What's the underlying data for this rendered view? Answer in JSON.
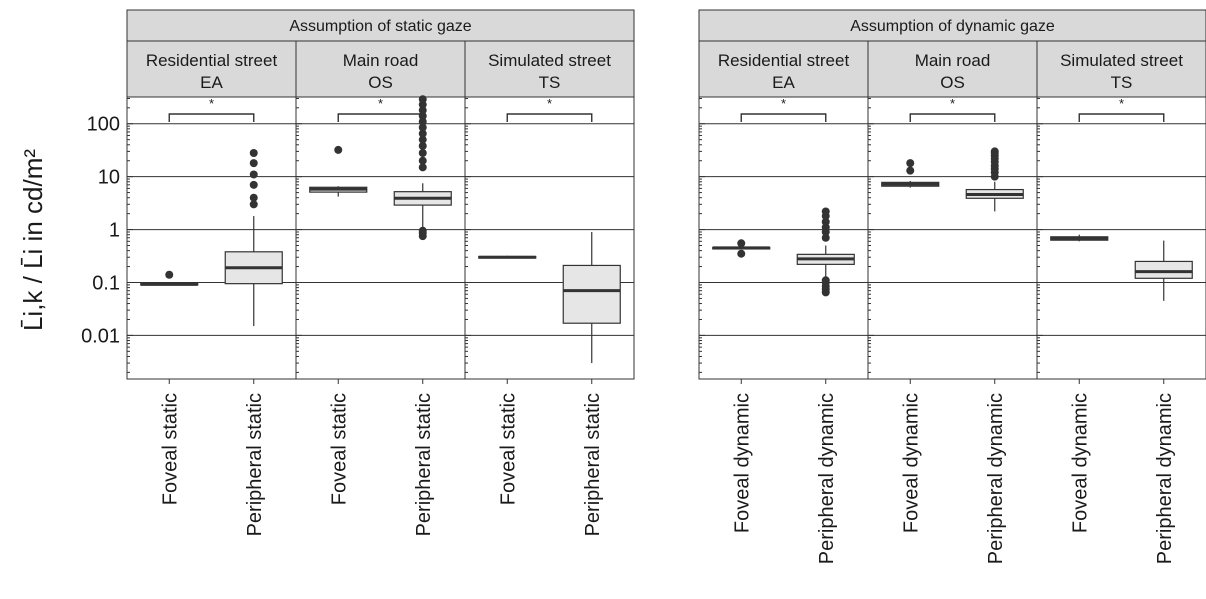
{
  "chart_data": {
    "type": "boxplot",
    "ylabel": "L̄i,k / L̄i in cd/m²",
    "yscale": "log",
    "ylim": [
      0.0015,
      320
    ],
    "y_ticks": [
      {
        "value": 100,
        "label": "100"
      },
      {
        "value": 10,
        "label": "10"
      },
      {
        "value": 1,
        "label": "1"
      },
      {
        "value": 0.1,
        "label": "0.1"
      },
      {
        "value": 0.01,
        "label": "0.01"
      }
    ],
    "grid": true,
    "groups": [
      {
        "title": "Assumption of static gaze",
        "panels": [
          {
            "title_line1": "Residential street",
            "title_line2": "EA",
            "significance": "*",
            "boxes": [
              {
                "category": "Foveal static",
                "whisker_low": 0.09,
                "q1": 0.09,
                "median": 0.092,
                "q3": 0.095,
                "whisker_high": 0.1,
                "outliers": [
                  0.14
                ]
              },
              {
                "category": "Peripheral static",
                "whisker_low": 0.015,
                "q1": 0.095,
                "median": 0.19,
                "q3": 0.38,
                "whisker_high": 1.8,
                "outliers": [
                  3,
                  4,
                  7,
                  11,
                  18,
                  28
                ]
              }
            ]
          },
          {
            "title_line1": "Main road",
            "title_line2": "OS",
            "significance": "*",
            "boxes": [
              {
                "category": "Foveal static",
                "whisker_low": 4.2,
                "q1": 5.1,
                "median": 5.8,
                "q3": 6.3,
                "whisker_high": 6.6,
                "outliers": [
                  32
                ]
              },
              {
                "category": "Peripheral static",
                "whisker_low": 1.1,
                "q1": 2.9,
                "median": 3.9,
                "q3": 5.2,
                "whisker_high": 7.5,
                "outliers": [
                  0.75,
                  0.85,
                  0.95,
                  15,
                  20,
                  28,
                  38,
                  50,
                  65,
                  85,
                  110,
                  140,
                  180,
                  230,
                  290
                ]
              }
            ]
          },
          {
            "title_line1": "Simulated street",
            "title_line2": "TS",
            "significance": "*",
            "boxes": [
              {
                "category": "Foveal static",
                "whisker_low": 0.29,
                "q1": 0.29,
                "median": 0.3,
                "q3": 0.31,
                "whisker_high": 0.32,
                "outliers": []
              },
              {
                "category": "Peripheral static",
                "whisker_low": 0.003,
                "q1": 0.017,
                "median": 0.07,
                "q3": 0.21,
                "whisker_high": 0.9,
                "outliers": []
              }
            ]
          }
        ]
      },
      {
        "title": "Assumption of dynamic gaze",
        "panels": [
          {
            "title_line1": "Residential street",
            "title_line2": "EA",
            "significance": "*",
            "boxes": [
              {
                "category": "Foveal dynamic",
                "whisker_low": 0.42,
                "q1": 0.43,
                "median": 0.45,
                "q3": 0.46,
                "whisker_high": 0.47,
                "outliers": [
                  0.35,
                  0.55
                ]
              },
              {
                "category": "Peripheral dynamic",
                "whisker_low": 0.12,
                "q1": 0.22,
                "median": 0.28,
                "q3": 0.34,
                "whisker_high": 0.5,
                "outliers": [
                  0.065,
                  0.075,
                  0.085,
                  0.1,
                  0.11,
                  0.7,
                  0.9,
                  1.1,
                  1.4,
                  1.8,
                  2.2
                ]
              }
            ]
          },
          {
            "title_line1": "Main road",
            "title_line2": "OS",
            "significance": "*",
            "boxes": [
              {
                "category": "Foveal dynamic",
                "whisker_low": 6.2,
                "q1": 6.6,
                "median": 7.2,
                "q3": 7.8,
                "whisker_high": 8.3,
                "outliers": [
                  13,
                  18
                ]
              },
              {
                "category": "Peripheral dynamic",
                "whisker_low": 2.2,
                "q1": 3.9,
                "median": 4.6,
                "q3": 5.7,
                "whisker_high": 8,
                "outliers": [
                  10,
                  12,
                  14,
                  16,
                  19,
                  22,
                  25,
                  28,
                  30
                ]
              }
            ]
          },
          {
            "title_line1": "Simulated street",
            "title_line2": "TS",
            "significance": "*",
            "boxes": [
              {
                "category": "Foveal dynamic",
                "whisker_low": 0.6,
                "q1": 0.63,
                "median": 0.68,
                "q3": 0.73,
                "whisker_high": 0.8,
                "outliers": []
              },
              {
                "category": "Peripheral dynamic",
                "whisker_low": 0.045,
                "q1": 0.12,
                "median": 0.16,
                "q3": 0.25,
                "whisker_high": 0.62,
                "outliers": []
              }
            ]
          }
        ]
      }
    ]
  }
}
